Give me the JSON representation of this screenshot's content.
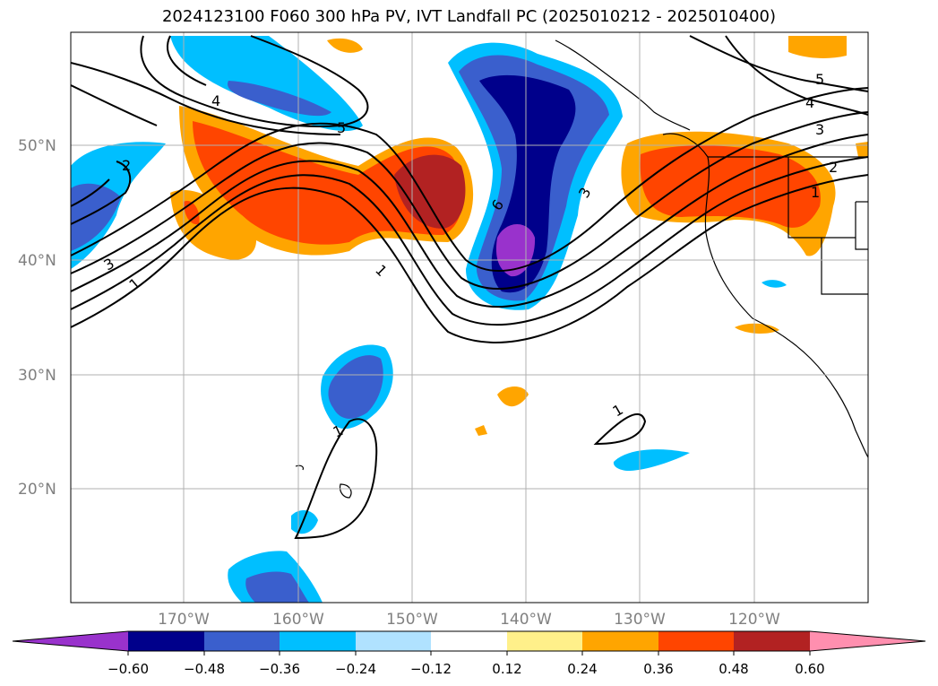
{
  "title": "2024123100 F060 300 hPa PV, IVT Landfall PC (2025010212 - 2025010400)",
  "lat_labels": [
    "50°N",
    "40°N",
    "30°N",
    "20°N"
  ],
  "lon_labels": [
    "170°W",
    "160°W",
    "150°W",
    "140°W",
    "130°W",
    "120°W"
  ],
  "colorbar": {
    "ticks": [
      "−0.60",
      "−0.48",
      "−0.36",
      "−0.24",
      "−0.12",
      "0.12",
      "0.24",
      "0.36",
      "0.48",
      "0.60"
    ],
    "colors": [
      "#9932cc",
      "#00008b",
      "#3a5fcd",
      "#00bfff",
      "#b0e2ff",
      "#ffffff",
      "#fff08a",
      "#ffa500",
      "#ff4500",
      "#b22222",
      "#ff8faf"
    ]
  },
  "contour_labels": [
    "1",
    "2",
    "3",
    "4",
    "5",
    "6",
    "1",
    "2",
    "3",
    "4",
    "5",
    "1",
    "1",
    "3",
    "1"
  ]
}
